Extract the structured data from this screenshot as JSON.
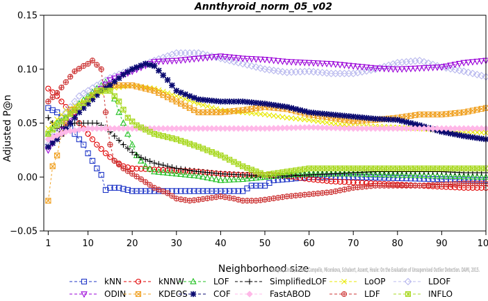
{
  "chart_data": {
    "type": "line",
    "title": "Annthyroid_norm_05_v02",
    "xlabel": "Neighborhood size",
    "ylabel": "Adjusted P@n",
    "xlim": [
      0,
      100
    ],
    "ylim": [
      -0.05,
      0.15
    ],
    "xticks": [
      "1",
      "10",
      "20",
      "30",
      "40",
      "50",
      "60",
      "70",
      "80",
      "90",
      "100"
    ],
    "yticks": [
      "−0.05",
      "0.00",
      "0.05",
      "0.10",
      "0.15"
    ],
    "grid": false,
    "legend_position": "bottom",
    "watermark": "Campos, Zimek, Sander, Campello, Micenkova, Schubert, Assent, Houle: On the Evaluation of Unsupervised Outlier Detection. DAMI, 2015.",
    "series": [
      {
        "name": "kNN",
        "color": "#1f36c7",
        "marker": "square",
        "points": [
          [
            1,
            0.064
          ],
          [
            3,
            0.06
          ],
          [
            5,
            0.05
          ],
          [
            7,
            0.04
          ],
          [
            9,
            0.03
          ],
          [
            10,
            0.022
          ],
          [
            11,
            0.015
          ],
          [
            12,
            0.008
          ],
          [
            13,
            0.002
          ],
          [
            14,
            -0.012
          ],
          [
            15,
            -0.01
          ],
          [
            17,
            -0.01
          ],
          [
            20,
            -0.013
          ],
          [
            30,
            -0.013
          ],
          [
            40,
            -0.013
          ],
          [
            45,
            -0.013
          ],
          [
            47,
            -0.008
          ],
          [
            50,
            -0.008
          ],
          [
            52,
            -0.003
          ],
          [
            55,
            -0.002
          ],
          [
            60,
            0.0
          ],
          [
            70,
            0.0
          ],
          [
            80,
            -0.001
          ],
          [
            90,
            -0.002
          ],
          [
            100,
            -0.003
          ]
        ]
      },
      {
        "name": "kNNW",
        "color": "#e00000",
        "marker": "circle",
        "points": [
          [
            1,
            0.082
          ],
          [
            3,
            0.075
          ],
          [
            5,
            0.065
          ],
          [
            7,
            0.06
          ],
          [
            8,
            0.05
          ],
          [
            10,
            0.04
          ],
          [
            12,
            0.03
          ],
          [
            14,
            0.022
          ],
          [
            16,
            0.015
          ],
          [
            18,
            0.01
          ],
          [
            20,
            0.008
          ],
          [
            25,
            0.007
          ],
          [
            30,
            0.006
          ],
          [
            35,
            0.005
          ],
          [
            40,
            0.003
          ],
          [
            45,
            0.002
          ],
          [
            50,
            0.002
          ],
          [
            55,
            0.001
          ],
          [
            60,
            -0.002
          ],
          [
            65,
            -0.004
          ],
          [
            70,
            -0.005
          ],
          [
            75,
            -0.006
          ],
          [
            80,
            -0.007
          ],
          [
            85,
            -0.008
          ],
          [
            90,
            -0.009
          ],
          [
            95,
            -0.01
          ],
          [
            100,
            -0.01
          ]
        ]
      },
      {
        "name": "LOF",
        "color": "#22c022",
        "marker": "triangle-up",
        "points": [
          [
            1,
            0.04
          ],
          [
            3,
            0.05
          ],
          [
            5,
            0.055
          ],
          [
            8,
            0.068
          ],
          [
            10,
            0.075
          ],
          [
            12,
            0.082
          ],
          [
            14,
            0.088
          ],
          [
            15,
            0.085
          ],
          [
            17,
            0.06
          ],
          [
            19,
            0.04
          ],
          [
            21,
            0.02
          ],
          [
            23,
            0.01
          ],
          [
            25,
            0.005
          ],
          [
            30,
            0.003
          ],
          [
            35,
            0.001
          ],
          [
            40,
            -0.003
          ],
          [
            45,
            -0.002
          ],
          [
            50,
            0.0
          ],
          [
            55,
            0.002
          ],
          [
            60,
            0.003
          ],
          [
            70,
            0.003
          ],
          [
            80,
            0.002
          ],
          [
            90,
            0.001
          ],
          [
            100,
            0.0
          ]
        ]
      },
      {
        "name": "SimplifiedLOF",
        "color": "#000000",
        "marker": "plus",
        "points": [
          [
            1,
            0.055
          ],
          [
            3,
            0.045
          ],
          [
            5,
            0.048
          ],
          [
            7,
            0.05
          ],
          [
            10,
            0.05
          ],
          [
            12,
            0.05
          ],
          [
            14,
            0.046
          ],
          [
            16,
            0.038
          ],
          [
            18,
            0.03
          ],
          [
            20,
            0.023
          ],
          [
            22,
            0.018
          ],
          [
            25,
            0.013
          ],
          [
            30,
            0.008
          ],
          [
            35,
            0.005
          ],
          [
            40,
            0.003
          ],
          [
            45,
            0.002
          ],
          [
            50,
            0.001
          ],
          [
            55,
            0.001
          ],
          [
            60,
            0.002
          ],
          [
            65,
            0.003
          ],
          [
            70,
            0.004
          ],
          [
            75,
            0.005
          ],
          [
            80,
            0.005
          ],
          [
            85,
            0.005
          ],
          [
            90,
            0.005
          ],
          [
            95,
            0.004
          ],
          [
            100,
            0.004
          ]
        ]
      },
      {
        "name": "LoOP",
        "color": "#e8e800",
        "marker": "x",
        "points": [
          [
            1,
            0.045
          ],
          [
            5,
            0.062
          ],
          [
            10,
            0.072
          ],
          [
            15,
            0.082
          ],
          [
            20,
            0.085
          ],
          [
            25,
            0.082
          ],
          [
            30,
            0.075
          ],
          [
            35,
            0.068
          ],
          [
            40,
            0.062
          ],
          [
            45,
            0.06
          ],
          [
            50,
            0.058
          ],
          [
            55,
            0.055
          ],
          [
            60,
            0.053
          ],
          [
            65,
            0.05
          ],
          [
            70,
            0.048
          ],
          [
            75,
            0.047
          ],
          [
            80,
            0.046
          ],
          [
            85,
            0.045
          ],
          [
            90,
            0.043
          ],
          [
            95,
            0.042
          ],
          [
            100,
            0.041
          ]
        ]
      },
      {
        "name": "LDOF",
        "color": "#b8b8ee",
        "marker": "diamond",
        "points": [
          [
            1,
            0.03
          ],
          [
            5,
            0.06
          ],
          [
            8,
            0.075
          ],
          [
            12,
            0.085
          ],
          [
            15,
            0.092
          ],
          [
            20,
            0.1
          ],
          [
            25,
            0.108
          ],
          [
            30,
            0.115
          ],
          [
            35,
            0.115
          ],
          [
            40,
            0.11
          ],
          [
            45,
            0.105
          ],
          [
            50,
            0.1
          ],
          [
            55,
            0.097
          ],
          [
            60,
            0.098
          ],
          [
            65,
            0.096
          ],
          [
            70,
            0.096
          ],
          [
            75,
            0.1
          ],
          [
            80,
            0.106
          ],
          [
            85,
            0.108
          ],
          [
            90,
            0.102
          ],
          [
            95,
            0.098
          ],
          [
            100,
            0.093
          ]
        ]
      },
      {
        "name": "ODIN",
        "color": "#9a00d8",
        "marker": "triangle-down",
        "points": [
          [
            1,
            0.025
          ],
          [
            5,
            0.05
          ],
          [
            10,
            0.07
          ],
          [
            15,
            0.09
          ],
          [
            20,
            0.098
          ],
          [
            25,
            0.107
          ],
          [
            30,
            0.108
          ],
          [
            35,
            0.11
          ],
          [
            40,
            0.112
          ],
          [
            45,
            0.11
          ],
          [
            50,
            0.109
          ],
          [
            55,
            0.107
          ],
          [
            60,
            0.106
          ],
          [
            65,
            0.105
          ],
          [
            70,
            0.103
          ],
          [
            75,
            0.101
          ],
          [
            80,
            0.1
          ],
          [
            85,
            0.101
          ],
          [
            90,
            0.102
          ],
          [
            95,
            0.106
          ],
          [
            100,
            0.108
          ]
        ]
      },
      {
        "name": "KDEOS",
        "color": "#f0a020",
        "marker": "boxed-x",
        "points": [
          [
            1,
            -0.022
          ],
          [
            2,
            0.01
          ],
          [
            3,
            0.02
          ],
          [
            4,
            0.04
          ],
          [
            6,
            0.06
          ],
          [
            8,
            0.065
          ],
          [
            10,
            0.072
          ],
          [
            12,
            0.078
          ],
          [
            15,
            0.085
          ],
          [
            20,
            0.085
          ],
          [
            25,
            0.08
          ],
          [
            30,
            0.07
          ],
          [
            35,
            0.06
          ],
          [
            40,
            0.06
          ],
          [
            45,
            0.062
          ],
          [
            50,
            0.065
          ],
          [
            55,
            0.063
          ],
          [
            60,
            0.058
          ],
          [
            65,
            0.055
          ],
          [
            70,
            0.052
          ],
          [
            75,
            0.053
          ],
          [
            80,
            0.055
          ],
          [
            85,
            0.058
          ],
          [
            90,
            0.058
          ],
          [
            95,
            0.06
          ],
          [
            100,
            0.064
          ]
        ]
      },
      {
        "name": "COF",
        "color": "#0a0a70",
        "marker": "star",
        "points": [
          [
            1,
            0.028
          ],
          [
            3,
            0.035
          ],
          [
            5,
            0.045
          ],
          [
            8,
            0.06
          ],
          [
            10,
            0.068
          ],
          [
            13,
            0.08
          ],
          [
            15,
            0.085
          ],
          [
            18,
            0.095
          ],
          [
            20,
            0.1
          ],
          [
            23,
            0.105
          ],
          [
            25,
            0.103
          ],
          [
            28,
            0.09
          ],
          [
            30,
            0.08
          ],
          [
            33,
            0.075
          ],
          [
            35,
            0.072
          ],
          [
            40,
            0.07
          ],
          [
            45,
            0.07
          ],
          [
            50,
            0.068
          ],
          [
            55,
            0.065
          ],
          [
            60,
            0.06
          ],
          [
            65,
            0.058
          ],
          [
            70,
            0.056
          ],
          [
            75,
            0.054
          ],
          [
            80,
            0.053
          ],
          [
            85,
            0.048
          ],
          [
            90,
            0.042
          ],
          [
            95,
            0.038
          ],
          [
            100,
            0.035
          ]
        ]
      },
      {
        "name": "FastABOD",
        "color": "#ffb8e8",
        "marker": "diamond-fill",
        "points": [
          [
            1,
            0.035
          ],
          [
            5,
            0.042
          ],
          [
            10,
            0.045
          ],
          [
            15,
            0.045
          ],
          [
            20,
            0.045
          ],
          [
            30,
            0.045
          ],
          [
            40,
            0.045
          ],
          [
            50,
            0.045
          ],
          [
            60,
            0.046
          ],
          [
            70,
            0.045
          ],
          [
            80,
            0.045
          ],
          [
            90,
            0.045
          ],
          [
            100,
            0.045
          ]
        ]
      },
      {
        "name": "LDF",
        "color": "#cc3333",
        "marker": "circle-plus",
        "points": [
          [
            1,
            0.07
          ],
          [
            3,
            0.078
          ],
          [
            5,
            0.088
          ],
          [
            7,
            0.098
          ],
          [
            9,
            0.103
          ],
          [
            10,
            0.105
          ],
          [
            11,
            0.108
          ],
          [
            13,
            0.1
          ],
          [
            14,
            0.06
          ],
          [
            15,
            0.03
          ],
          [
            16,
            0.015
          ],
          [
            18,
            0.008
          ],
          [
            20,
            0.003
          ],
          [
            22,
            -0.002
          ],
          [
            25,
            -0.01
          ],
          [
            28,
            -0.015
          ],
          [
            30,
            -0.02
          ],
          [
            33,
            -0.022
          ],
          [
            35,
            -0.021
          ],
          [
            40,
            -0.018
          ],
          [
            43,
            -0.02
          ],
          [
            45,
            -0.022
          ],
          [
            48,
            -0.022
          ],
          [
            50,
            -0.021
          ],
          [
            55,
            -0.018
          ],
          [
            60,
            -0.016
          ],
          [
            65,
            -0.014
          ],
          [
            70,
            -0.01
          ],
          [
            75,
            -0.008
          ],
          [
            80,
            -0.008
          ],
          [
            85,
            -0.008
          ],
          [
            90,
            -0.007
          ],
          [
            95,
            -0.006
          ],
          [
            100,
            -0.006
          ]
        ]
      },
      {
        "name": "INFLO",
        "color": "#a8d820",
        "marker": "boxed-star",
        "points": [
          [
            1,
            0.04
          ],
          [
            3,
            0.048
          ],
          [
            5,
            0.055
          ],
          [
            8,
            0.065
          ],
          [
            10,
            0.072
          ],
          [
            12,
            0.08
          ],
          [
            15,
            0.08
          ],
          [
            17,
            0.07
          ],
          [
            19,
            0.055
          ],
          [
            21,
            0.048
          ],
          [
            25,
            0.04
          ],
          [
            30,
            0.035
          ],
          [
            35,
            0.028
          ],
          [
            40,
            0.02
          ],
          [
            45,
            0.01
          ],
          [
            50,
            0.002
          ],
          [
            55,
            0.005
          ],
          [
            60,
            0.008
          ],
          [
            65,
            0.008
          ],
          [
            70,
            0.008
          ],
          [
            75,
            0.008
          ],
          [
            80,
            0.008
          ],
          [
            85,
            0.008
          ],
          [
            90,
            0.008
          ],
          [
            95,
            0.008
          ],
          [
            100,
            0.008
          ]
        ]
      }
    ]
  }
}
